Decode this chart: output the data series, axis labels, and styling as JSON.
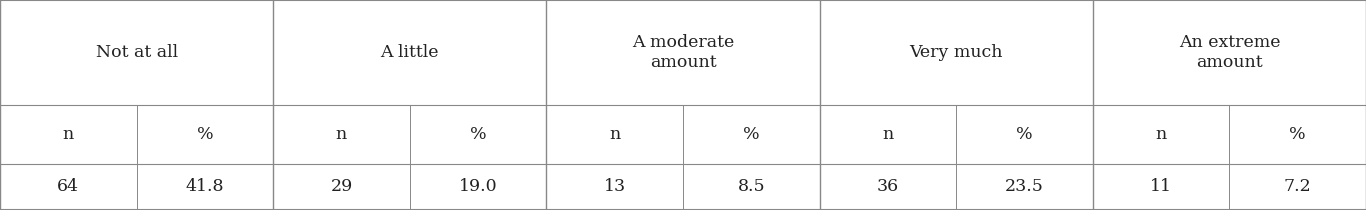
{
  "categories": [
    "Not at all",
    "A little",
    "A moderate\namount",
    "Very much",
    "An extreme\namount"
  ],
  "col_headers": [
    "n",
    "%",
    "n",
    "%",
    "n",
    "%",
    "n",
    "%",
    "n",
    "%"
  ],
  "data_row": [
    "64",
    "41.8",
    "29",
    "19.0",
    "13",
    "8.5",
    "36",
    "23.5",
    "11",
    "7.2"
  ],
  "background_color": "#ffffff",
  "line_color": "#888888",
  "text_color": "#222222",
  "font_size": 12.5,
  "header_font_size": 12.5,
  "figwidth": 13.66,
  "figheight": 2.1,
  "dpi": 100,
  "row_tops": [
    1.0,
    0.5,
    0.22,
    0.0
  ],
  "group_boundaries": [
    0.0,
    0.2,
    0.4,
    0.6,
    0.8,
    1.0
  ],
  "internal_boundaries": [
    0.1,
    0.3,
    0.5,
    0.7,
    0.9
  ],
  "group_centers": [
    0.1,
    0.3,
    0.5,
    0.7,
    0.9
  ],
  "lw_outer": 1.5,
  "lw_inner": 0.8,
  "lw_vert_main": 1.0,
  "lw_vert_sub": 0.7
}
